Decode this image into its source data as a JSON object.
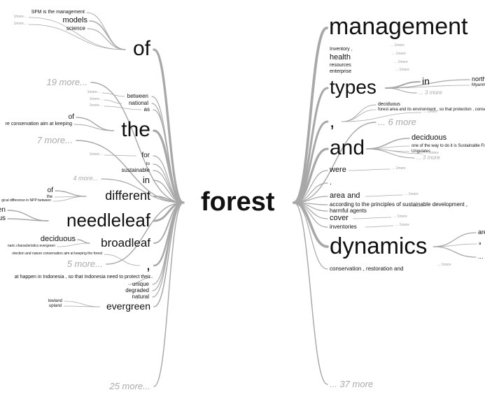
{
  "center_word": "forest",
  "colors": {
    "text": "#111111",
    "branch": "#a8a8a8",
    "more": "#aaaaaa",
    "tiny": "#9a9a9a"
  },
  "left": {
    "top_level": [
      {
        "text": "of"
      },
      {
        "text": "19 more..."
      },
      {
        "text": "between"
      },
      {
        "text": "national"
      },
      {
        "text": "as"
      },
      {
        "text": "the"
      },
      {
        "text": "7 more..."
      },
      {
        "text": "for"
      },
      {
        "text": "to"
      },
      {
        "text": "sustainable"
      },
      {
        "text": "in"
      },
      {
        "text": "4 more..."
      },
      {
        "text": "different"
      },
      {
        "text": "needleleaf"
      },
      {
        "text": "broadleaf"
      },
      {
        "text": ","
      },
      {
        "text": "5 more..."
      },
      {
        "text": "unique"
      },
      {
        "text": "degraded"
      },
      {
        "text": "natural"
      },
      {
        "text": "evergreen"
      },
      {
        "text": "25 more..."
      }
    ],
    "sub": [
      {
        "text": "SFM  is  the  management"
      },
      {
        "text": "models"
      },
      {
        "text": "science"
      },
      {
        "text": "1more..."
      },
      {
        "text": "1more..."
      },
      {
        "text": "1more..."
      },
      {
        "text": "of"
      },
      {
        "text": "re   conservation   aim  at  keeping"
      },
      {
        "text": "1more..."
      },
      {
        "text": "1more..."
      },
      {
        "text": "1more..."
      },
      {
        "text": "of"
      },
      {
        "text": "the"
      },
      {
        "text": "gical  difference  in  NPP  between"
      },
      {
        "text": "en"
      },
      {
        "text": "us"
      },
      {
        "text": "deciduous"
      },
      {
        "text": "naric  characteristics    evergreen"
      },
      {
        "text": "otection  and  nature  conservation  aim  at  keeping  the  forest"
      },
      {
        "text": "at  happen  in  Indonesia  ,  so  that  Indonesia  need  to  protect  their"
      },
      {
        "text": "lowland"
      },
      {
        "text": "upland"
      }
    ]
  },
  "right": {
    "top_level": [
      {
        "text": "management"
      },
      {
        "text": "types"
      },
      {
        "text": ","
      },
      {
        "text": "... 6 more"
      },
      {
        "text": "and"
      },
      {
        "text": "were"
      },
      {
        "text": "."
      },
      {
        "text": "area and"
      },
      {
        "text": "according  to  the  principles  of  sustainable   development  ,"
      },
      {
        "text": "harmful agents"
      },
      {
        "text": "cover"
      },
      {
        "text": "inventories"
      },
      {
        "text": "dynamics"
      },
      {
        "text": "conservation   ,  restoration  and"
      },
      {
        "text": "... 37 more"
      }
    ],
    "sub": [
      {
        "text": "Inventory  ,"
      },
      {
        "text": "health"
      },
      {
        "text": "resources"
      },
      {
        "text": "enterprise"
      },
      {
        "text": "in"
      },
      {
        "text": "north"
      },
      {
        "text": "Myanmar"
      },
      {
        "text": "... 3 more"
      },
      {
        "text": "deciduous"
      },
      {
        "text": "forest  area  and  its  environment  ,  so  that  protection  ,  conse"
      },
      {
        "text": "deciduous"
      },
      {
        "text": "one  of  the  way  to  do  it  is  Sustainable  Fo"
      },
      {
        "text": "Ungulates"
      },
      {
        "text": "... 3 more"
      },
      {
        "text": "are"
      },
      {
        "text": "a"
      },
      {
        "text": "..."
      },
      {
        "text": "... 1more"
      },
      {
        "text": "... 1more"
      },
      {
        "text": "... 1more"
      },
      {
        "text": "... 1more"
      },
      {
        "text": "... 1more"
      },
      {
        "text": "... 1more"
      },
      {
        "text": "... 1more"
      },
      {
        "text": "... 1more"
      },
      {
        "text": "... 1more"
      },
      {
        "text": "... 1more"
      },
      {
        "text": "... 1more"
      },
      {
        "text": "... 1more"
      }
    ]
  }
}
